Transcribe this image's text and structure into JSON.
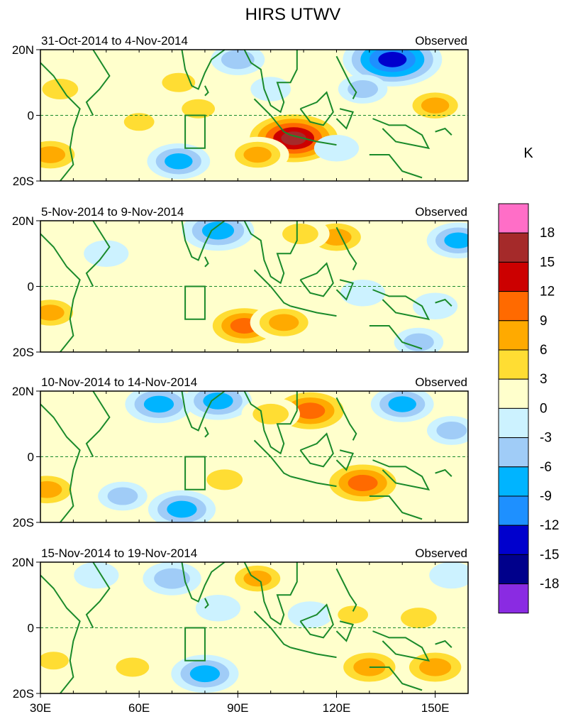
{
  "chart_data": {
    "type": "heatmap",
    "title": "HIRS UTWV",
    "unit_label": "K",
    "colorbar": {
      "tick_labels": [
        "18",
        "15",
        "12",
        "9",
        "6",
        "3",
        "0",
        "-3",
        "-6",
        "-9",
        "-12",
        "-15",
        "-18"
      ],
      "colors": [
        "#ff6ec7",
        "#a52a2a",
        "#cc0000",
        "#ff6a00",
        "#ffaa00",
        "#ffdd33",
        "#ffffcc",
        "#ccf2ff",
        "#a0ccf7",
        "#00b4ff",
        "#1e90ff",
        "#0000cd",
        "#00008b",
        "#8a2be2"
      ]
    },
    "x_ticks": [
      "30E",
      "60E",
      "90E",
      "120E",
      "150E"
    ],
    "y_ticks": [
      "20N",
      "0",
      "20S"
    ],
    "lon_range": [
      30,
      160
    ],
    "lat_range": [
      -20,
      20
    ],
    "panels": [
      {
        "period": "31-Oct-2014 to 4-Nov-2014",
        "label": "Observed",
        "anomalies": [
          {
            "lon": 36,
            "lat": 8,
            "value": 6
          },
          {
            "lon": 72,
            "lat": 10,
            "value": 5
          },
          {
            "lon": 78,
            "lat": 2,
            "value": 5
          },
          {
            "lon": 60,
            "lat": -2,
            "value": 4
          },
          {
            "lon": 33,
            "lat": -12,
            "value": 8
          },
          {
            "lon": 100,
            "lat": 8,
            "value": -2
          },
          {
            "lon": 90,
            "lat": 17,
            "value": -5
          },
          {
            "lon": 72,
            "lat": -14,
            "value": -7
          },
          {
            "lon": 107,
            "lat": -7,
            "value": 16
          },
          {
            "lon": 96,
            "lat": -12,
            "value": 7
          },
          {
            "lon": 137,
            "lat": 17,
            "value": -15
          },
          {
            "lon": 128,
            "lat": 8,
            "value": -4
          },
          {
            "lon": 150,
            "lat": 3,
            "value": 7
          },
          {
            "lon": 120,
            "lat": -10,
            "value": -3
          }
        ]
      },
      {
        "period": "5-Nov-2014 to 9-Nov-2014",
        "label": "Observed",
        "anomalies": [
          {
            "lon": 84,
            "lat": 17,
            "value": -9
          },
          {
            "lon": 50,
            "lat": 10,
            "value": -3
          },
          {
            "lon": 64,
            "lat": 5,
            "value": 3
          },
          {
            "lon": 33,
            "lat": -8,
            "value": 7
          },
          {
            "lon": 120,
            "lat": 15,
            "value": 8
          },
          {
            "lon": 109,
            "lat": 16,
            "value": 6
          },
          {
            "lon": 92,
            "lat": -12,
            "value": 11
          },
          {
            "lon": 104,
            "lat": -11,
            "value": 8
          },
          {
            "lon": 157,
            "lat": 14,
            "value": -7
          },
          {
            "lon": 128,
            "lat": -2,
            "value": -3
          },
          {
            "lon": 150,
            "lat": -6,
            "value": -3
          },
          {
            "lon": 145,
            "lat": -17,
            "value": -4
          }
        ]
      },
      {
        "period": "10-Nov-2014 to 14-Nov-2014",
        "label": "Observed",
        "anomalies": [
          {
            "lon": 66,
            "lat": 16,
            "value": -8
          },
          {
            "lon": 84,
            "lat": 17,
            "value": -8
          },
          {
            "lon": 112,
            "lat": 14,
            "value": 12
          },
          {
            "lon": 100,
            "lat": 13,
            "value": 6
          },
          {
            "lon": 32,
            "lat": -10,
            "value": 8
          },
          {
            "lon": 86,
            "lat": -7,
            "value": 6
          },
          {
            "lon": 128,
            "lat": -8,
            "value": 12
          },
          {
            "lon": 140,
            "lat": 16,
            "value": -7
          },
          {
            "lon": 155,
            "lat": 8,
            "value": -4
          },
          {
            "lon": 73,
            "lat": -16,
            "value": -8
          },
          {
            "lon": 55,
            "lat": -12,
            "value": -4
          }
        ]
      },
      {
        "period": "15-Nov-2014 to 19-Nov-2014",
        "label": "Observed",
        "anomalies": [
          {
            "lon": 96,
            "lat": 15,
            "value": 7
          },
          {
            "lon": 70,
            "lat": 15,
            "value": -6
          },
          {
            "lon": 47,
            "lat": 16,
            "value": -3
          },
          {
            "lon": 84,
            "lat": 6,
            "value": -3
          },
          {
            "lon": 58,
            "lat": -12,
            "value": 5
          },
          {
            "lon": 80,
            "lat": -14,
            "value": -8
          },
          {
            "lon": 112,
            "lat": 4,
            "value": -3
          },
          {
            "lon": 130,
            "lat": -12,
            "value": 9
          },
          {
            "lon": 150,
            "lat": -12,
            "value": 9
          },
          {
            "lon": 145,
            "lat": 3,
            "value": 6
          },
          {
            "lon": 125,
            "lat": 4,
            "value": 4
          },
          {
            "lon": 155,
            "lat": 16,
            "value": -3
          },
          {
            "lon": 34,
            "lat": -10,
            "value": 4
          }
        ]
      }
    ]
  }
}
